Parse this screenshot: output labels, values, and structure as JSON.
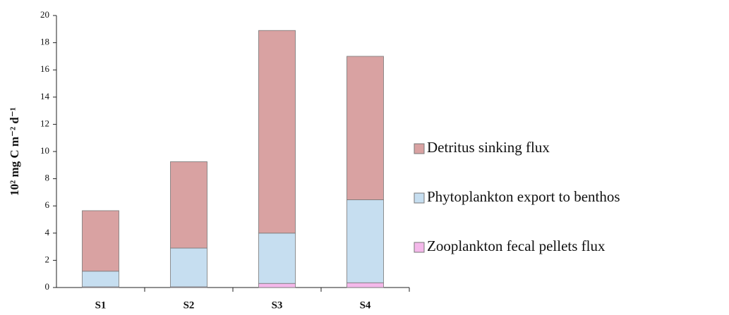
{
  "chart_data": {
    "type": "stacked_bar",
    "y_label": "10² mg C m⁻² d⁻¹",
    "categories": [
      "S1",
      "S2",
      "S3",
      "S4"
    ],
    "series": [
      {
        "name": "Zooplankton fecal pellets flux",
        "color": "#f4b8ea",
        "values": [
          0.05,
          0.05,
          0.3,
          0.35
        ]
      },
      {
        "name": "Phytoplankton export to benthos",
        "color": "#c6def0",
        "values": [
          1.15,
          2.85,
          3.7,
          6.1
        ]
      },
      {
        "name": "Detritus sinking flux",
        "color": "#d9a2a2",
        "values": [
          4.45,
          6.35,
          14.9,
          10.55
        ]
      }
    ],
    "ylim": [
      0,
      20
    ],
    "yticks": [
      0,
      2,
      4,
      6,
      8,
      10,
      12,
      14,
      16,
      18,
      20
    ],
    "legend": "right"
  }
}
